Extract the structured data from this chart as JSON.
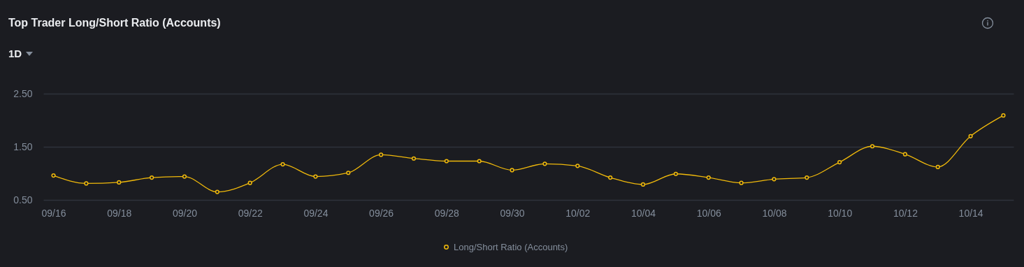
{
  "chart_data": {
    "type": "line",
    "title": "Top Trader Long/Short Ratio (Accounts)",
    "subtitle": "1D",
    "categories": [
      "09/16",
      null,
      "09/18",
      null,
      "09/20",
      null,
      "09/22",
      null,
      "09/24",
      null,
      "09/26",
      null,
      "09/28",
      null,
      "09/30",
      null,
      "10/02",
      null,
      "10/04",
      null,
      "10/06",
      null,
      "10/08",
      null,
      "10/10",
      null,
      "10/12",
      null,
      "10/14",
      null
    ],
    "series": [
      {
        "name": "Long/Short Ratio (Accounts)",
        "color": "#f0b90b",
        "values": [
          0.96,
          0.81,
          0.83,
          0.92,
          0.94,
          0.65,
          0.82,
          1.17,
          0.94,
          1.01,
          1.35,
          1.28,
          1.23,
          1.23,
          1.06,
          1.18,
          1.14,
          0.92,
          0.79,
          0.99,
          0.92,
          0.82,
          0.89,
          0.92,
          1.21,
          1.51,
          1.36,
          1.12,
          1.7,
          2.09
        ]
      }
    ],
    "ylim": [
      0.5,
      2.5
    ],
    "yticks": [
      {
        "value": 0.5,
        "label": "0.50"
      },
      {
        "value": 1.5,
        "label": "1.50"
      },
      {
        "value": 2.5,
        "label": "2.50"
      }
    ],
    "grid": "y",
    "legend": "bottom",
    "marker": "circle",
    "line_style": "solid"
  }
}
